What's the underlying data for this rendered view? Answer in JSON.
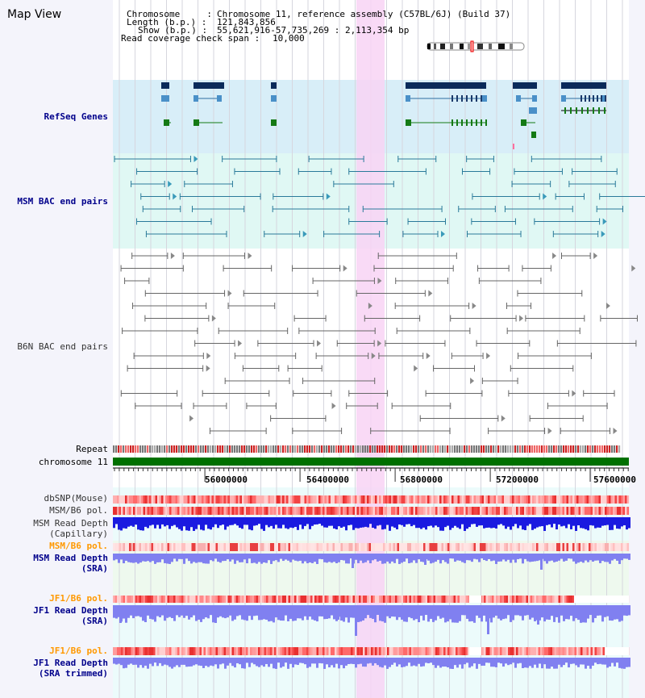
{
  "title": "Map View",
  "header": {
    "chromosome_label": "Chromosome     :",
    "chromosome_value": "Chromosome 11, reference assembly (C57BL/6J) (Build 37)",
    "length_label": "Length (b.p.) :",
    "length_value": "121,843,856",
    "show_label": "Show (b.p.) :",
    "show_value": "55,621,916-57,735,269 : 2,113,354 bp",
    "coverage_label": "Read coverage check span :",
    "coverage_value": "10,000"
  },
  "tracks": {
    "refseq": "RefSeq Genes",
    "msm_bac": "MSM BAC end pairs",
    "b6n_bac": "B6N BAC end pairs",
    "repeat": "Repeat",
    "chromosome": "chromosome 11",
    "dbsnp": "dbSNP(Mouse)",
    "msm_pol": "MSM/B6 pol.",
    "msm_depth_cap_1": "MSM Read Depth",
    "msm_depth_cap_2": "(Capillary)",
    "msm_pol2": "MSM/B6 pol.",
    "msm_depth_sra_1": "MSM Read Depth",
    "msm_depth_sra_2": "(SRA)",
    "jf1_pol": "JF1/B6 pol.",
    "jf1_depth_1": "JF1 Read Depth",
    "jf1_depth_2": "(SRA)",
    "jf1_pol2": "JF1/B6 pol.",
    "jf1_trim_1": "JF1 Read Depth",
    "jf1_trim_2": "(SRA trimmed)"
  },
  "axis": {
    "ticks": [
      "56000000",
      "56400000",
      "56800000",
      "57200000",
      "57600000"
    ]
  },
  "colors": {
    "highlight": "#f8d4f4",
    "refseq_bg": "#d8eef8",
    "msm_bg": "#e0f8f4",
    "gene_navy": "#0a2a5a",
    "gene_green": "#157a15",
    "chromosome_bar": "#007000",
    "depth_blue": "#1a1ae0",
    "depth_light": "#8080f0"
  }
}
